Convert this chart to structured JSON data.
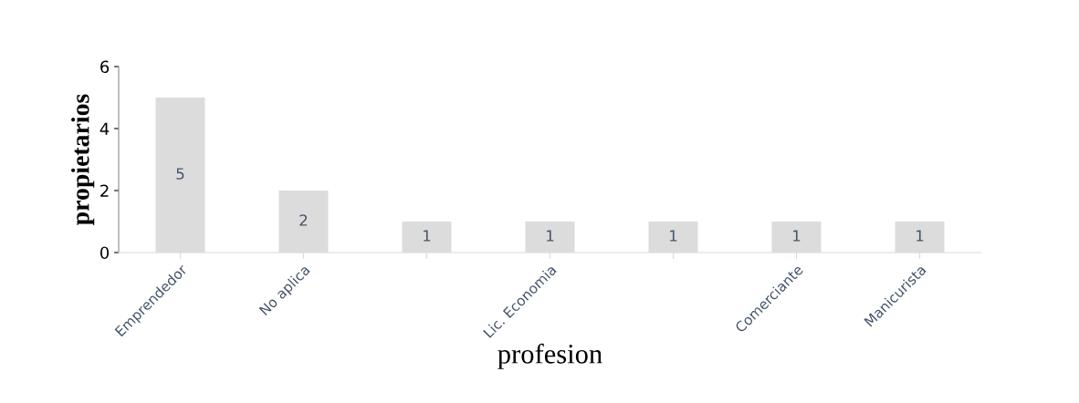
{
  "chart_data": {
    "type": "bar",
    "xlabel": "profesion",
    "ylabel": "propietarios",
    "categories": [
      "Emprendedor",
      "No aplica",
      null,
      "Lic. Economia",
      null,
      "Comerciante",
      "Manicurista"
    ],
    "values": [
      5,
      2,
      1,
      1,
      1,
      1,
      1
    ],
    "color": "#dcdcdc",
    "ylim": [
      0,
      6
    ],
    "yticks": [
      0,
      2,
      4,
      6
    ],
    "data_labels": true,
    "grid": false,
    "legend": false
  }
}
